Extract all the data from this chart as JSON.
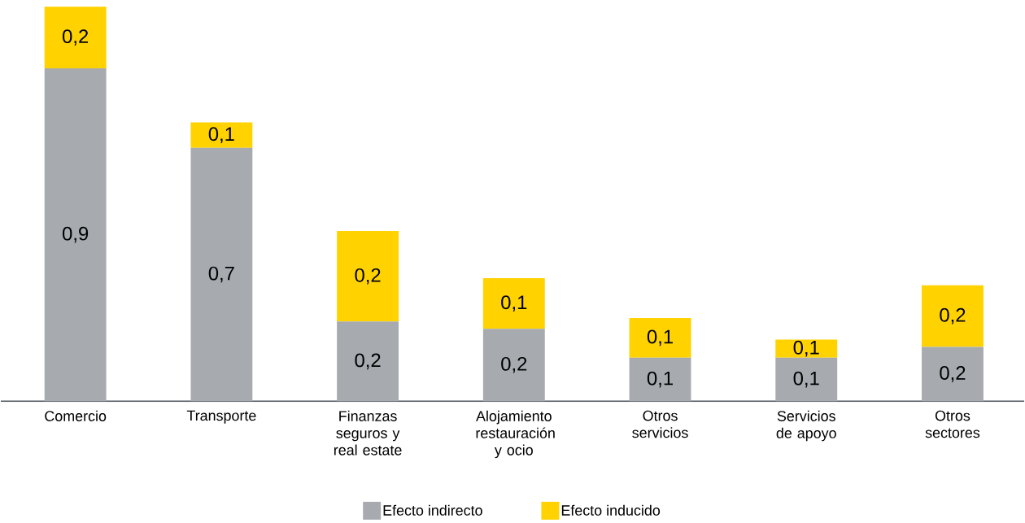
{
  "chart_data": {
    "type": "bar",
    "stacked": true,
    "legend": "bottom",
    "categories": [
      "Comercio",
      "Transporte",
      "Finanzas seguros y real estate",
      "Alojamiento restauración y ocio",
      "Otros servicios",
      "Servicios de apoyo",
      "Otros sectores"
    ],
    "series": [
      {
        "name": "Efecto indirecto",
        "color": "#a7abb0",
        "values": [
          0.92,
          0.7,
          0.22,
          0.2,
          0.12,
          0.12,
          0.15
        ],
        "value_labels": [
          "0,9",
          "0,7",
          "0,2",
          "0,2",
          "0,1",
          "0,1",
          "0,2"
        ]
      },
      {
        "name": "Efecto inducido",
        "color": "#ffd200",
        "values": [
          0.17,
          0.07,
          0.25,
          0.14,
          0.11,
          0.05,
          0.17
        ],
        "value_labels": [
          "0,2",
          "0,1",
          "0,2",
          "0,1",
          "0,1",
          "0,1",
          "0,2"
        ]
      }
    ]
  }
}
